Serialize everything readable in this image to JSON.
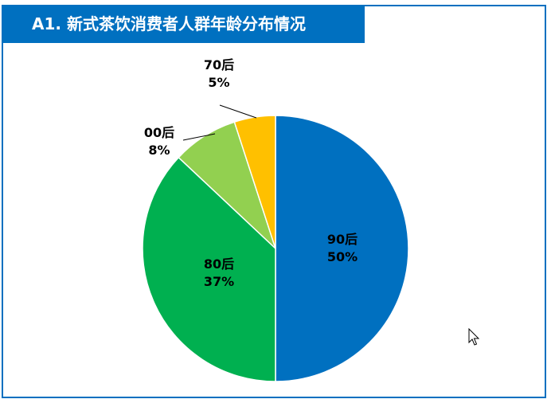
{
  "title": "A1. 新式茶饮消费者人群年龄分布情况",
  "colors": {
    "frame": "#0070C0",
    "title_bg": "#0070C0"
  },
  "chart_data": {
    "type": "pie",
    "start_angle_deg": 0,
    "direction": "clockwise",
    "slices": [
      {
        "label": "90后",
        "pct_label": "50%",
        "value": 50,
        "color": "#0070C0"
      },
      {
        "label": "80后",
        "pct_label": "37%",
        "value": 37,
        "color": "#00B050"
      },
      {
        "label": "00后",
        "pct_label": "8%",
        "value": 8,
        "color": "#92D050"
      },
      {
        "label": "70后",
        "pct_label": "5%",
        "value": 5,
        "color": "#FFC000"
      }
    ]
  }
}
